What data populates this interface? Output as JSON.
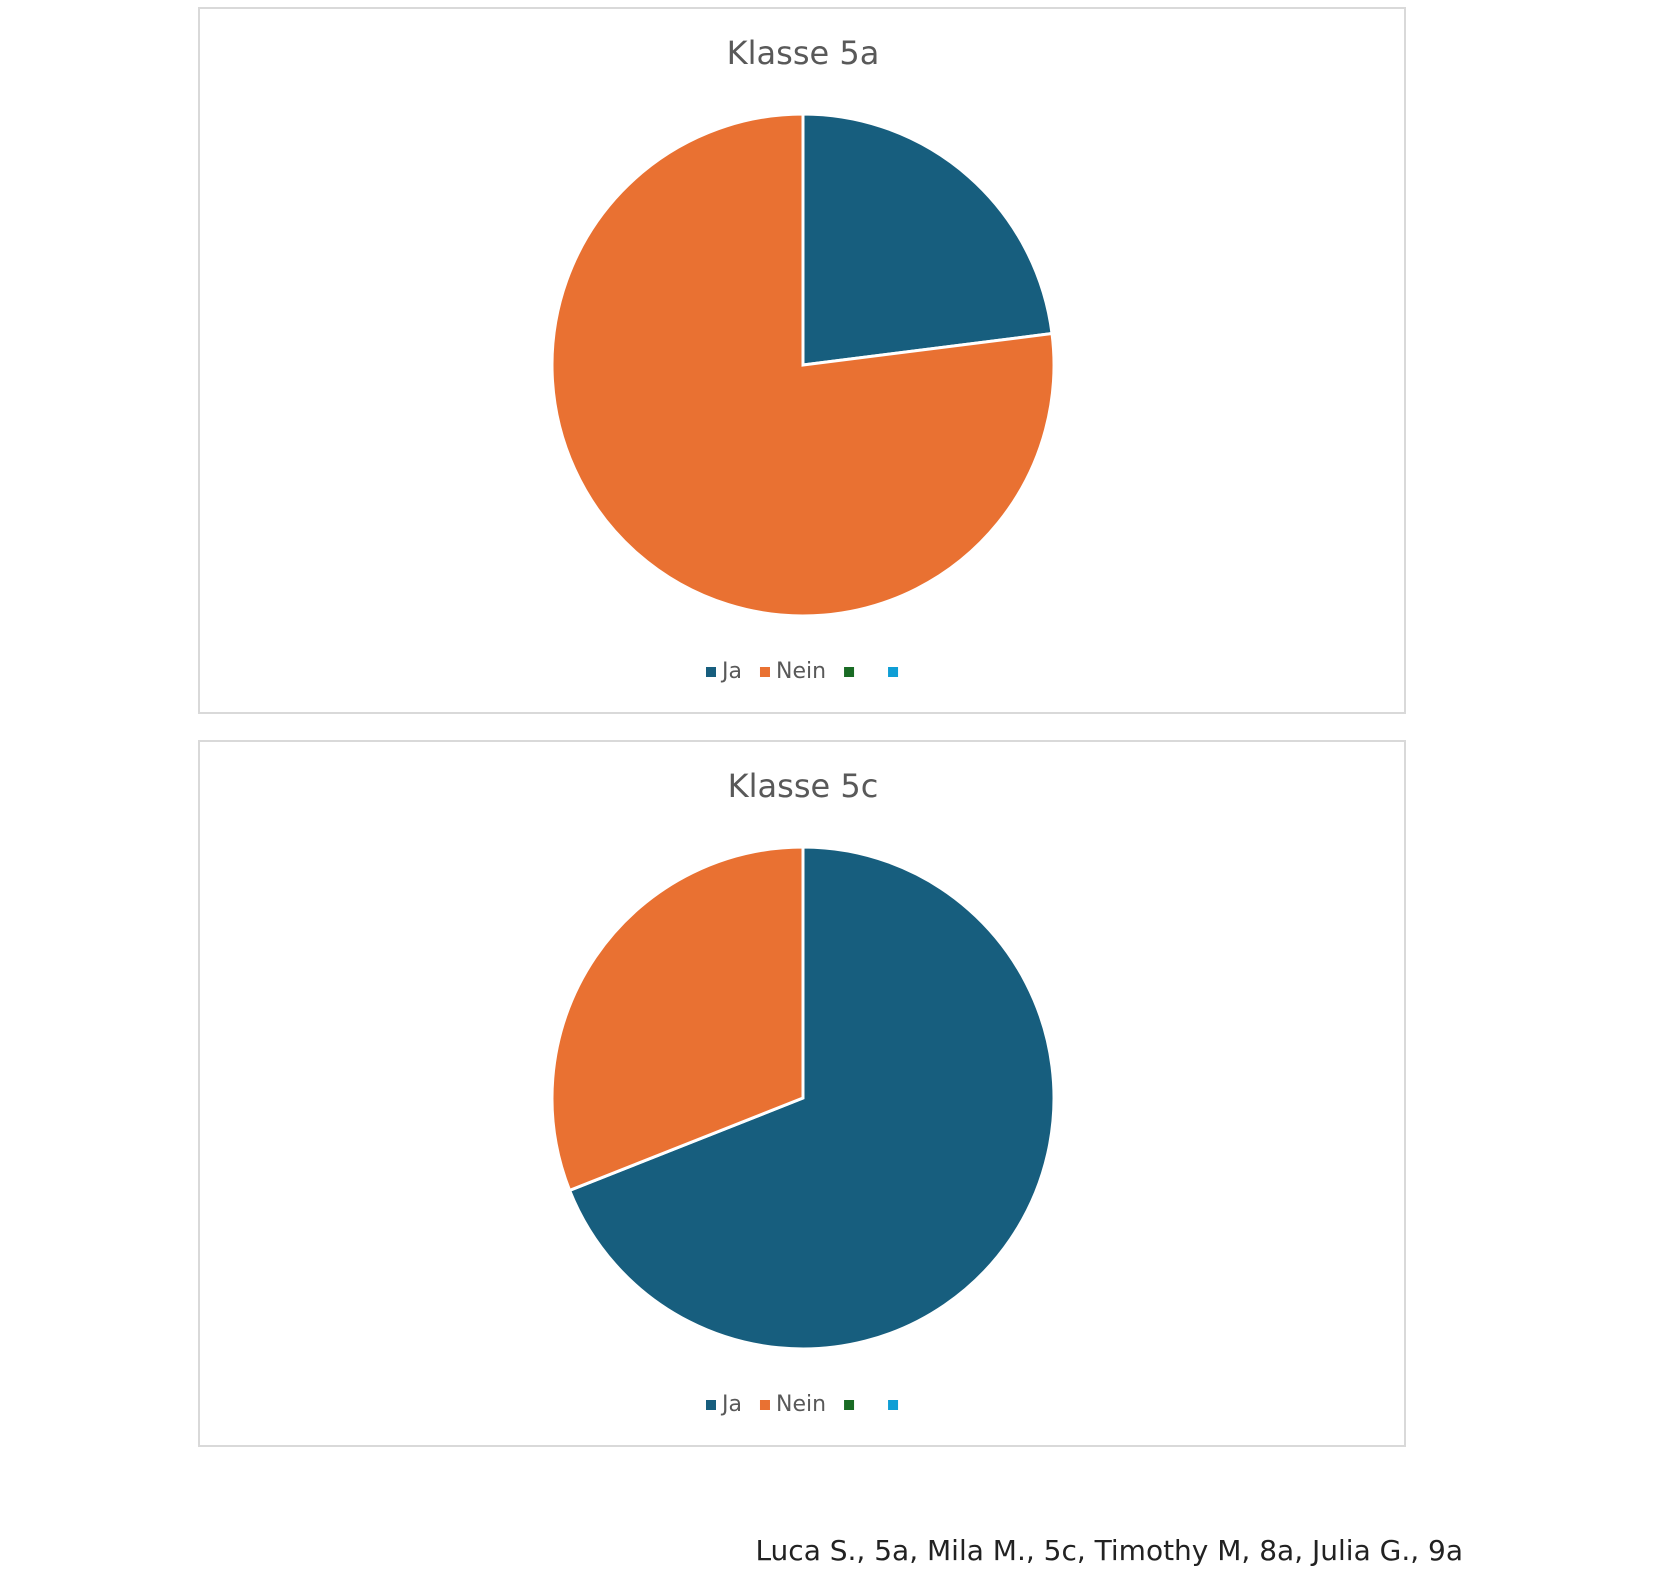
{
  "chart_data": [
    {
      "type": "pie",
      "title": "Klasse 5a",
      "categories": [
        "Ja",
        "Nein",
        null,
        null
      ],
      "values": [
        23,
        77,
        0,
        0
      ],
      "colors": [
        "#175e7e",
        "#e97132",
        "#196b24",
        "#0f9ed5"
      ],
      "legend": "bottom"
    },
    {
      "type": "pie",
      "title": "Klasse 5c",
      "categories": [
        "Ja",
        "Nein",
        null,
        null
      ],
      "values": [
        69,
        31,
        0,
        0
      ],
      "colors": [
        "#175e7e",
        "#e97132",
        "#196b24",
        "#0f9ed5"
      ],
      "legend": "bottom"
    }
  ],
  "footer": "Luca S., 5a, Mila M., 5c, Timothy M, 8a, Julia G., 9a"
}
